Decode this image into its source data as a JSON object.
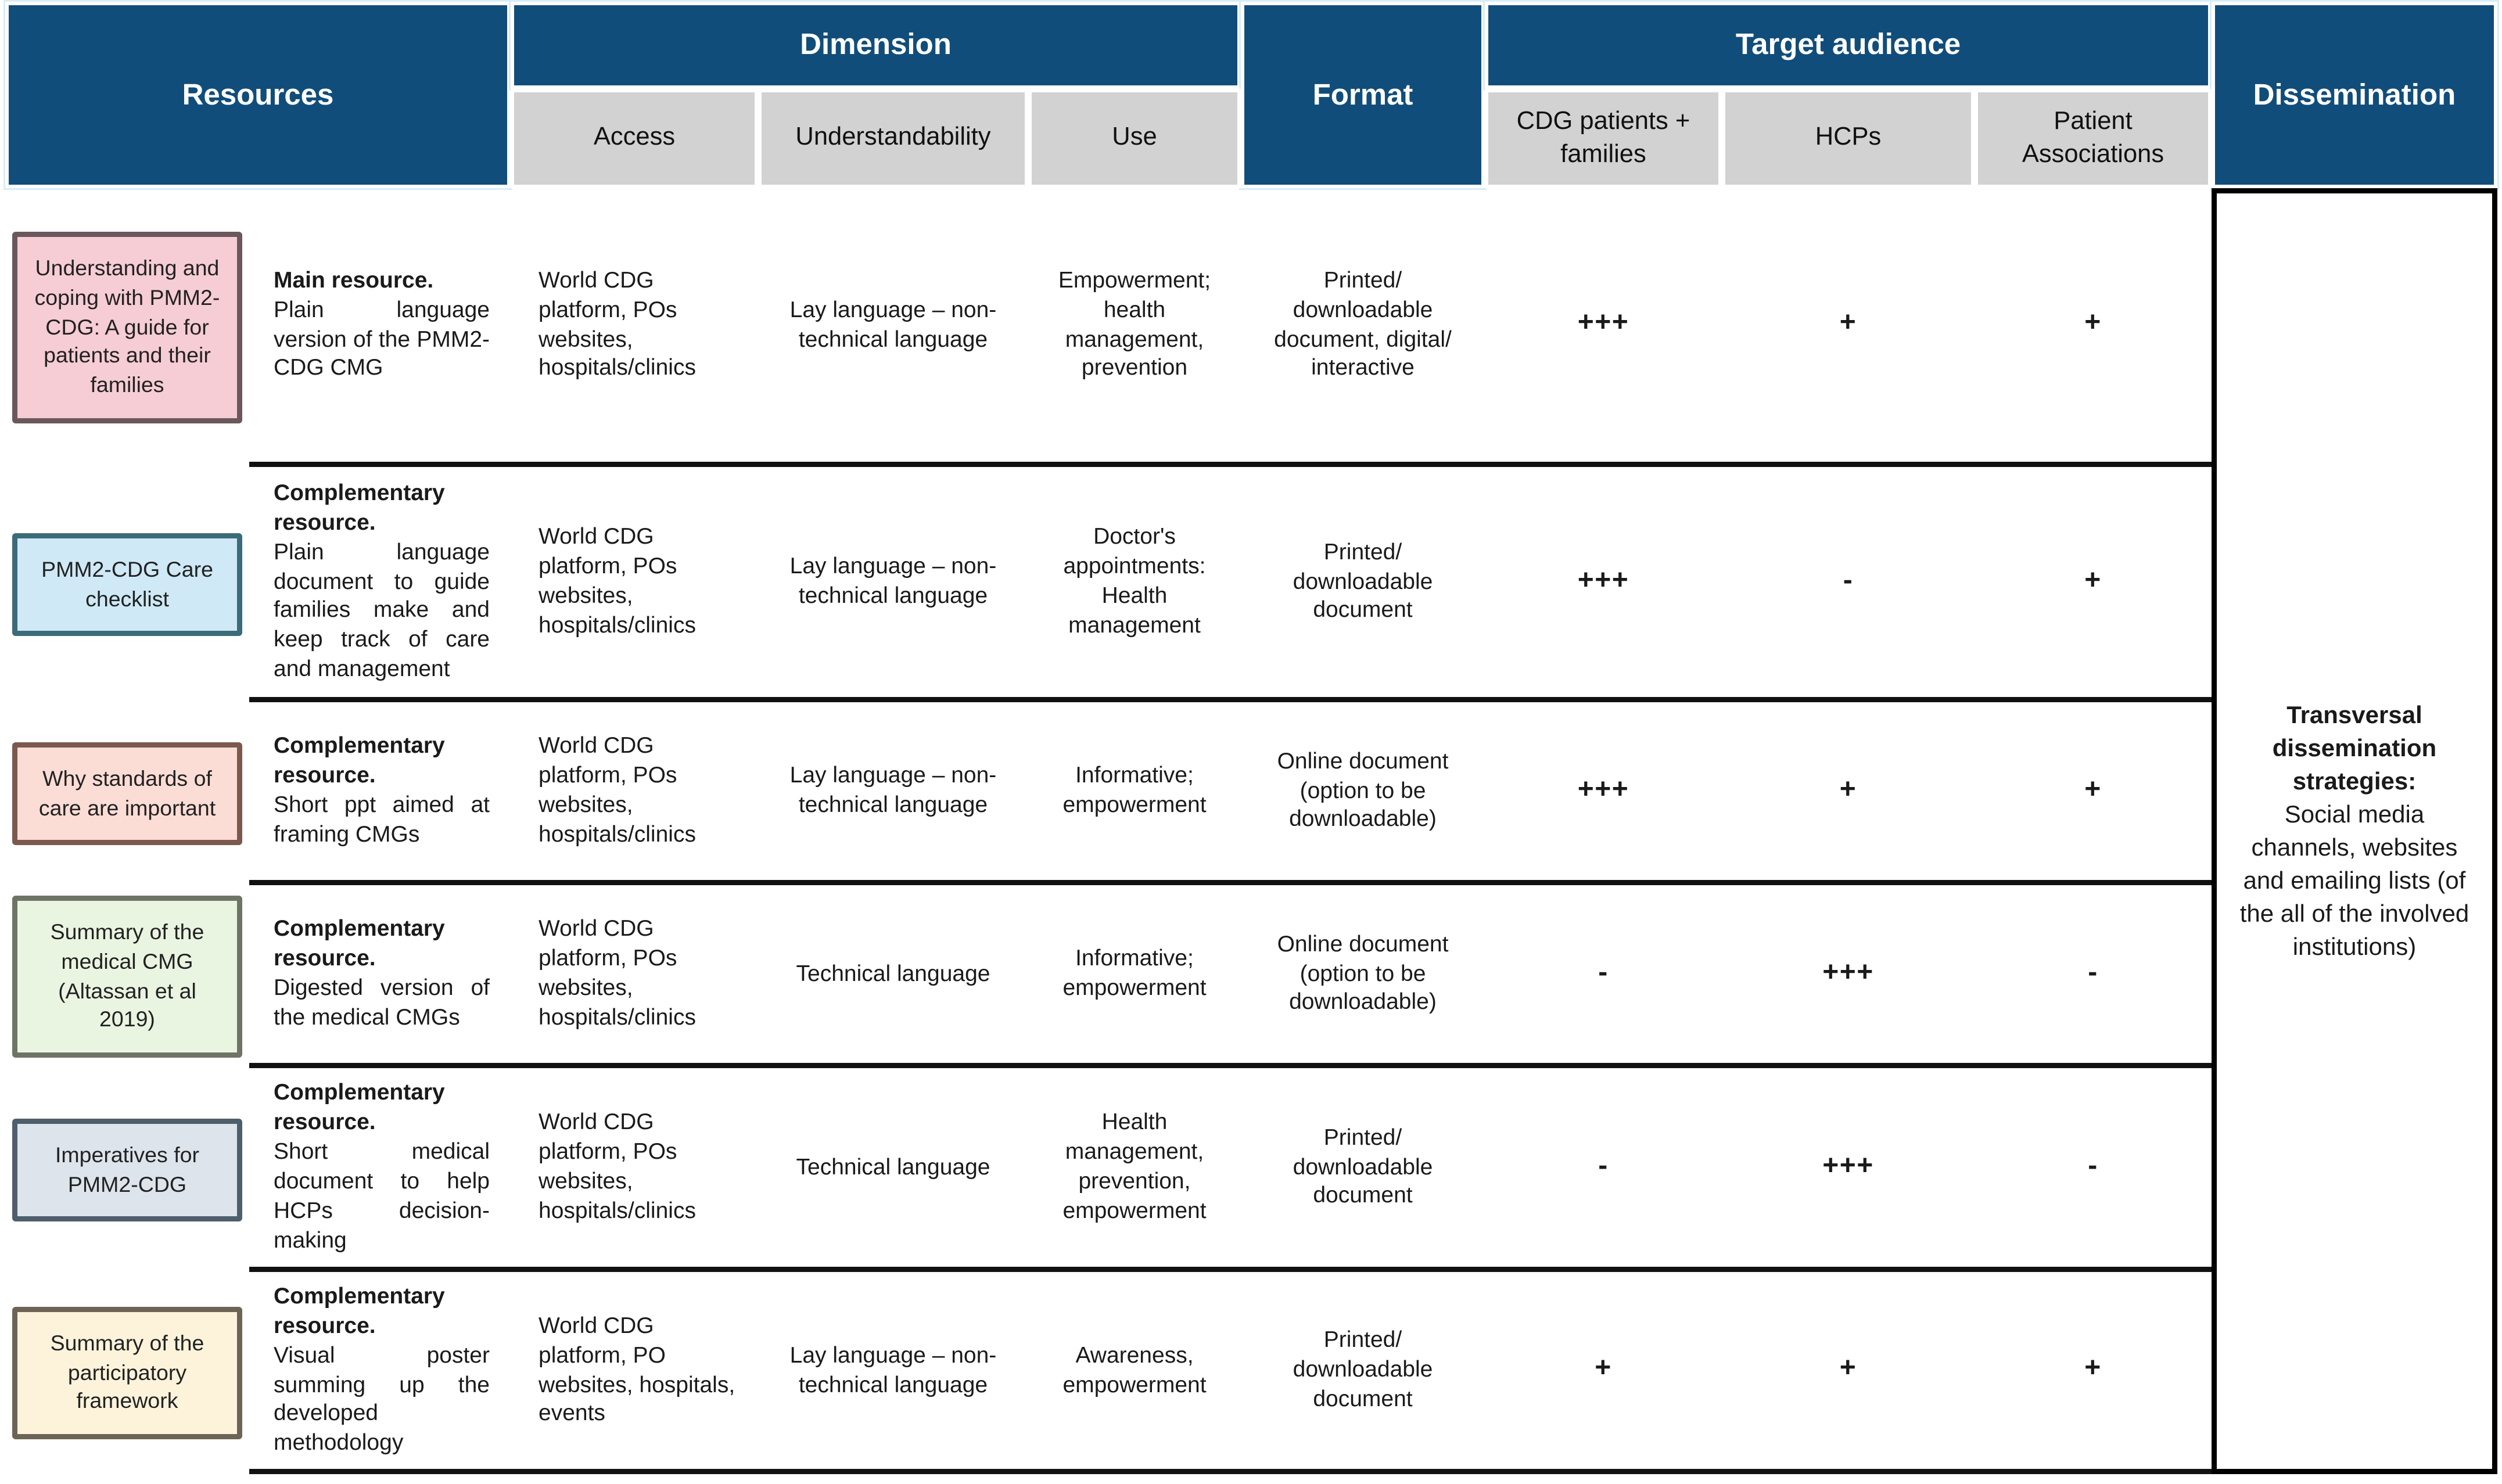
{
  "colors": {
    "header_bg": "#114d7a",
    "subheader_bg": "#d2d2d2",
    "separator": "#111111",
    "boxes": {
      "row1_bg": "#f6cdd4",
      "row1_border": "#6a585c",
      "row2_bg": "#cfe9f6",
      "row2_border": "#3c6b79",
      "row3_bg": "#fbddd6",
      "row3_border": "#7c594e",
      "row4_bg": "#eaf5e1",
      "row4_border": "#6f7566",
      "row5_bg": "#dde4ec",
      "row5_border": "#4f5e6b",
      "row6_bg": "#fdf3db",
      "row6_border": "#6d6456"
    }
  },
  "table": {
    "header": {
      "resources": "Resources",
      "dimension": "Dimension",
      "format": "Format",
      "target_audience": "Target audience",
      "dissemination": "Dissemination",
      "access": "Access",
      "understandability": "Understandability",
      "use": "Use",
      "cdg_patients_families": "CDG patients + families",
      "hcps": "HCPs",
      "patient_associations": "Patient Associations"
    },
    "rows": [
      {
        "resource": "Understanding and coping with PMM2-CDG: A guide for patients and their families",
        "description": {
          "lead": "Main resource.",
          "body": "Plain language version of the PMM2-CDG CMG"
        },
        "access": "World CDG platform, POs websites, hospitals/clinics",
        "understandability": "Lay language – non-technical language",
        "use": "Empowerment; health management, prevention",
        "format": "Printed/ downloadable document, digital/ interactive",
        "audience": {
          "cdg_patients_families": "+++",
          "hcps": "+",
          "patient_associations": "+"
        }
      },
      {
        "resource": "PMM2-CDG Care checklist",
        "description": {
          "lead": "Complementary resource.",
          "body": "Plain language document to guide families make and keep track of care and management"
        },
        "access": "World CDG platform, POs websites, hospitals/clinics",
        "understandability": "Lay language – non-technical language",
        "use": "Doctor's appointments: Health management",
        "format": "Printed/ downloadable document",
        "audience": {
          "cdg_patients_families": "+++",
          "hcps": "-",
          "patient_associations": "+"
        }
      },
      {
        "resource": "Why standards of care are important",
        "description": {
          "lead": "Complementary resource.",
          "body": "Short ppt aimed at framing CMGs"
        },
        "access": "World CDG platform, POs websites, hospitals/clinics",
        "understandability": "Lay language – non-technical language",
        "use": "Informative; empowerment",
        "format": "Online document (option to be downloadable)",
        "audience": {
          "cdg_patients_families": "+++",
          "hcps": "+",
          "patient_associations": "+"
        }
      },
      {
        "resource": "Summary of the medical CMG (Altassan et al 2019)",
        "description": {
          "lead": "Complementary resource.",
          "body": "Digested version of the medical CMGs"
        },
        "access": "World CDG platform, POs websites, hospitals/clinics",
        "understandability": "Technical language",
        "use": "Informative; empowerment",
        "format": "Online document (option to be downloadable)",
        "audience": {
          "cdg_patients_families": "-",
          "hcps": "+++",
          "patient_associations": "-"
        }
      },
      {
        "resource": "Imperatives for PMM2-CDG",
        "description": {
          "lead": "Complementary resource.",
          "body": "Short medical document to help HCPs decision-making"
        },
        "access": "World CDG platform, POs websites, hospitals/clinics",
        "understandability": "Technical language",
        "use": "Health management, prevention, empowerment",
        "format": "Printed/ downloadable document",
        "audience": {
          "cdg_patients_families": "-",
          "hcps": "+++",
          "patient_associations": "-"
        }
      },
      {
        "resource": "Summary of the participatory framework",
        "description": {
          "lead": "Complementary resource.",
          "body": "Visual poster summing up the developed methodology"
        },
        "access": "World CDG platform, PO websites, hospitals, events",
        "understandability": "Lay language – non-technical language",
        "use": "Awareness, empowerment",
        "format": "Printed/ downloadable document",
        "audience": {
          "cdg_patients_families": "+",
          "hcps": "+",
          "patient_associations": "+"
        }
      }
    ],
    "dissemination": {
      "lead": "Transversal dissemination strategies:",
      "body": "Social media channels, websites and emailing lists (of the all of the involved institutions)"
    }
  }
}
